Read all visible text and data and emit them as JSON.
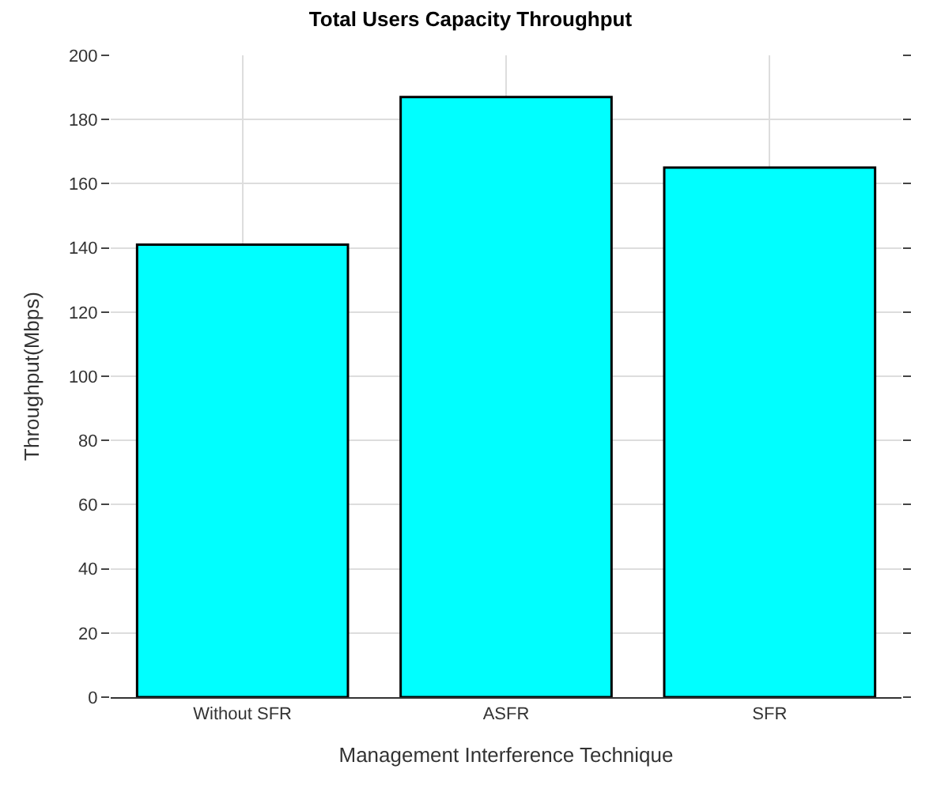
{
  "chart_data": {
    "type": "bar",
    "title": "Total Users Capacity Throughput",
    "xlabel": "Management Interference Technique",
    "ylabel": "Throughput(Mbps)",
    "categories": [
      "Without SFR",
      "ASFR",
      "SFR"
    ],
    "series": [
      {
        "color": "#00ffff",
        "values": [
          141,
          187,
          165
        ]
      }
    ],
    "ylim": [
      0,
      200
    ],
    "yticks": [
      0,
      20,
      40,
      60,
      80,
      100,
      120,
      140,
      160,
      180,
      200
    ],
    "grid": true,
    "legend": false
  }
}
